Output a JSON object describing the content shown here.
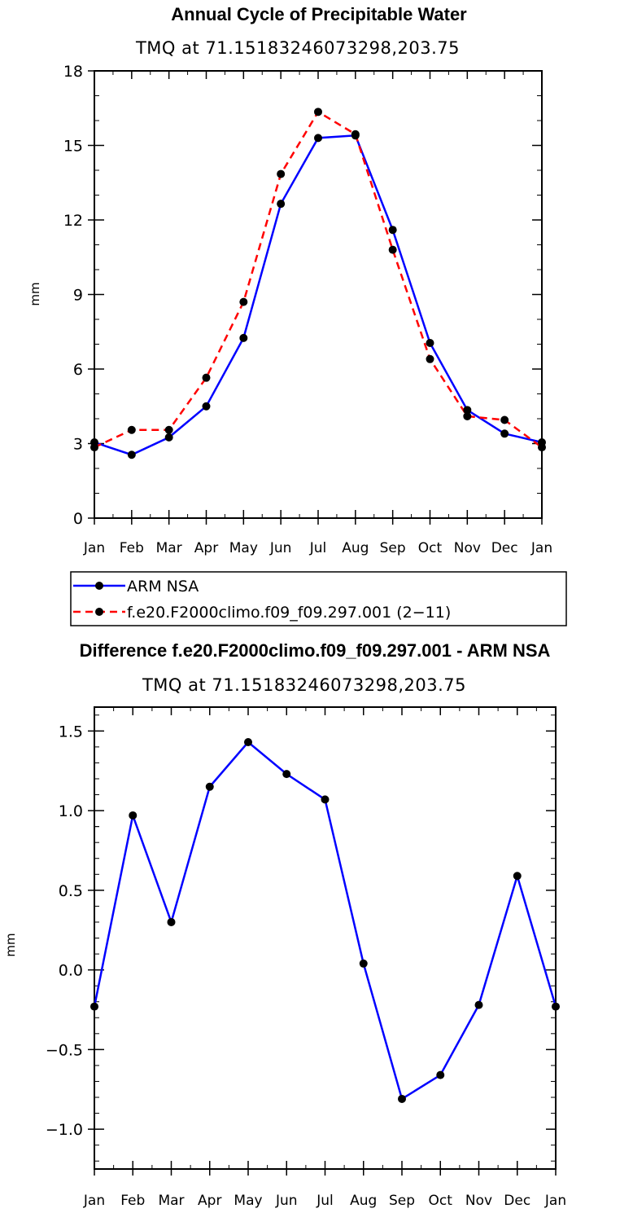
{
  "chart_data": [
    {
      "type": "line",
      "title": "Annual Cycle of Precipitable Water",
      "subtitle": "TMQ  at  71.15183246073298,203.75",
      "xlabel": "",
      "ylabel": "mm",
      "categories": [
        "Jan",
        "Feb",
        "Mar",
        "Apr",
        "May",
        "Jun",
        "Jul",
        "Aug",
        "Sep",
        "Oct",
        "Nov",
        "Dec",
        "Jan"
      ],
      "ylim": [
        0,
        18
      ],
      "yticks": [
        "0",
        "3",
        "6",
        "9",
        "12",
        "15",
        "18"
      ],
      "series": [
        {
          "name": "ARM  NSA",
          "color": "#0000ff",
          "dash": "solid",
          "values": [
            3.05,
            2.55,
            3.25,
            4.5,
            7.25,
            12.65,
            15.3,
            15.4,
            11.6,
            7.05,
            4.35,
            3.4,
            3.05
          ]
        },
        {
          "name": "f.e20.F2000climo.f09_f09.297.001  (2−11)",
          "color": "#ff0000",
          "dash": "dashed",
          "values": [
            2.85,
            3.55,
            3.55,
            5.65,
            8.7,
            13.85,
            16.35,
            15.45,
            10.8,
            6.4,
            4.1,
            3.95,
            2.85
          ]
        }
      ],
      "legend": "bottom"
    },
    {
      "type": "line",
      "title": "Difference f.e20.F2000climo.f09_f09.297.001 - ARM NSA",
      "subtitle": "TMQ  at  71.15183246073298,203.75",
      "xlabel": "",
      "ylabel": "mm",
      "categories": [
        "Jan",
        "Feb",
        "Mar",
        "Apr",
        "May",
        "Jun",
        "Jul",
        "Aug",
        "Sep",
        "Oct",
        "Nov",
        "Dec",
        "Jan"
      ],
      "ylim": [
        -1.25,
        1.65
      ],
      "yticks": [
        "−1.0",
        "−0.5",
        "0.0",
        "0.5",
        "1.0",
        "1.5"
      ],
      "ytick_values": [
        -1.0,
        -0.5,
        0.0,
        0.5,
        1.0,
        1.5
      ],
      "series": [
        {
          "name": "difference",
          "color": "#0000ff",
          "dash": "solid",
          "values": [
            -0.23,
            0.97,
            0.3,
            1.15,
            1.43,
            1.23,
            1.07,
            0.04,
            -0.81,
            -0.66,
            -0.22,
            0.59,
            -0.23
          ]
        }
      ]
    }
  ]
}
